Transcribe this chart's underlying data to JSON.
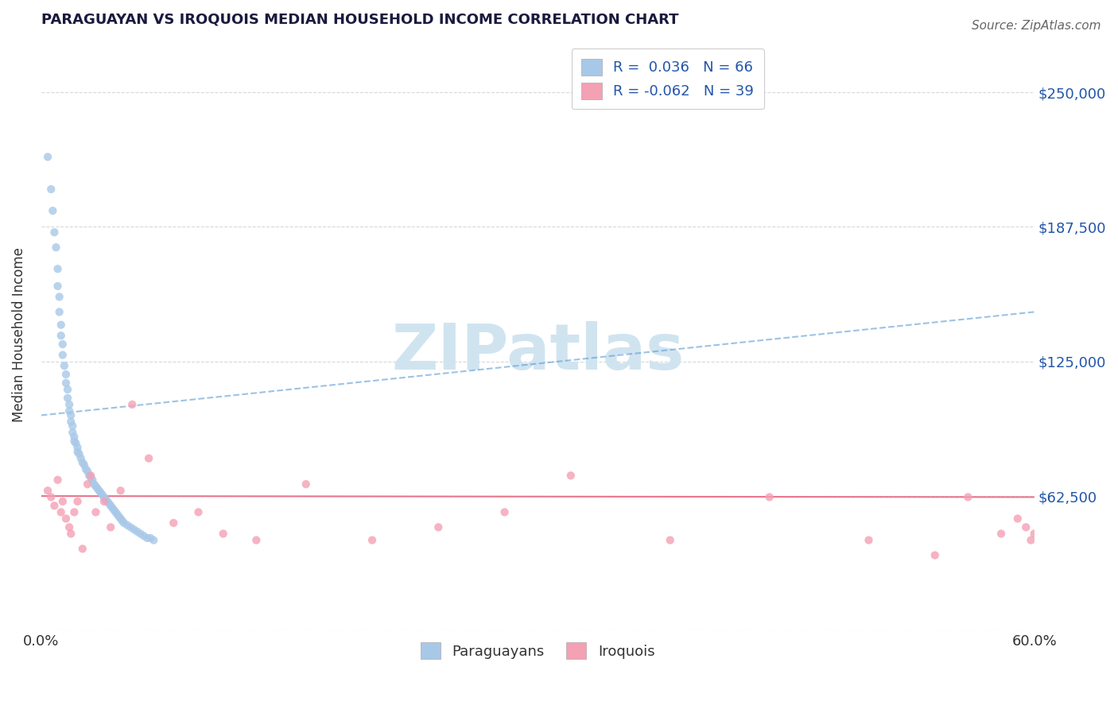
{
  "title": "PARAGUAYAN VS IROQUOIS MEDIAN HOUSEHOLD INCOME CORRELATION CHART",
  "source": "Source: ZipAtlas.com",
  "ylabel": "Median Household Income",
  "xlim": [
    0.0,
    0.6
  ],
  "ylim": [
    0,
    275000
  ],
  "yticks": [
    0,
    62500,
    125000,
    187500,
    250000
  ],
  "ytick_labels": [
    "",
    "$62,500",
    "$125,000",
    "$187,500",
    "$250,000"
  ],
  "xticks": [
    0.0,
    0.6
  ],
  "xtick_labels": [
    "0.0%",
    "60.0%"
  ],
  "paraguayan_scatter_color": "#a8c8e8",
  "iroquois_scatter_color": "#f4a0b5",
  "paraguayan_line_color": "#5b9bd5",
  "iroquois_line_color": "#e8607a",
  "title_color": "#1a1a3e",
  "source_color": "#666666",
  "ylabel_color": "#333333",
  "right_tick_color": "#2255aa",
  "bottom_legend_color": "#333333",
  "watermark_color": "#d0e4f0",
  "paraguayan_x": [
    0.004,
    0.006,
    0.007,
    0.008,
    0.009,
    0.01,
    0.01,
    0.011,
    0.011,
    0.012,
    0.012,
    0.013,
    0.013,
    0.014,
    0.015,
    0.015,
    0.016,
    0.016,
    0.017,
    0.017,
    0.018,
    0.018,
    0.019,
    0.019,
    0.02,
    0.02,
    0.021,
    0.022,
    0.022,
    0.023,
    0.024,
    0.025,
    0.026,
    0.027,
    0.028,
    0.029,
    0.03,
    0.031,
    0.032,
    0.033,
    0.034,
    0.035,
    0.036,
    0.037,
    0.038,
    0.039,
    0.04,
    0.041,
    0.042,
    0.043,
    0.044,
    0.045,
    0.046,
    0.047,
    0.048,
    0.049,
    0.05,
    0.052,
    0.054,
    0.056,
    0.058,
    0.06,
    0.062,
    0.064,
    0.066,
    0.068
  ],
  "paraguayan_y": [
    220000,
    205000,
    195000,
    185000,
    178000,
    168000,
    160000,
    155000,
    148000,
    142000,
    137000,
    133000,
    128000,
    123000,
    119000,
    115000,
    112000,
    108000,
    105000,
    102000,
    100000,
    97000,
    95000,
    92000,
    90000,
    88000,
    87000,
    85000,
    83000,
    82000,
    80000,
    78000,
    77000,
    75000,
    74000,
    72000,
    71000,
    70000,
    68000,
    67000,
    66000,
    65000,
    64000,
    63000,
    62000,
    61000,
    60000,
    59000,
    58000,
    57000,
    56000,
    55000,
    54000,
    53000,
    52000,
    51000,
    50000,
    49000,
    48000,
    47000,
    46000,
    45000,
    44000,
    43000,
    43000,
    42000
  ],
  "iroquois_x": [
    0.004,
    0.006,
    0.008,
    0.01,
    0.012,
    0.013,
    0.015,
    0.017,
    0.018,
    0.02,
    0.022,
    0.025,
    0.028,
    0.03,
    0.033,
    0.038,
    0.042,
    0.048,
    0.055,
    0.065,
    0.08,
    0.095,
    0.11,
    0.13,
    0.16,
    0.2,
    0.24,
    0.28,
    0.32,
    0.38,
    0.44,
    0.5,
    0.54,
    0.56,
    0.58,
    0.59,
    0.595,
    0.598,
    0.6
  ],
  "iroquois_y": [
    65000,
    62000,
    58000,
    70000,
    55000,
    60000,
    52000,
    48000,
    45000,
    55000,
    60000,
    38000,
    68000,
    72000,
    55000,
    60000,
    48000,
    65000,
    105000,
    80000,
    50000,
    55000,
    45000,
    42000,
    68000,
    42000,
    48000,
    55000,
    72000,
    42000,
    62000,
    42000,
    35000,
    62000,
    45000,
    52000,
    48000,
    42000,
    45000
  ]
}
